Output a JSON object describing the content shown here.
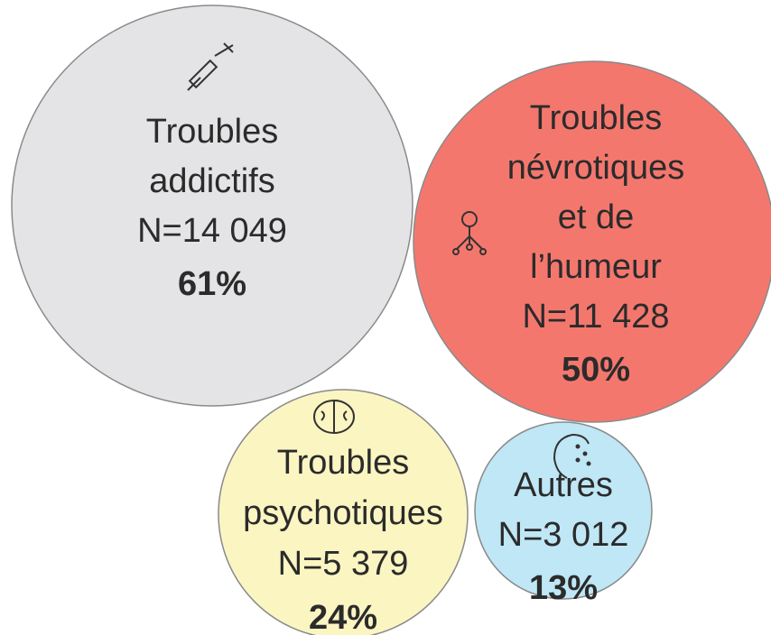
{
  "nodes": [
    {
      "label_lines": [
        "Troubles",
        "addictifs"
      ],
      "count": "N=14 049",
      "share": "61%"
    },
    {
      "label_lines": [
        "Troubles",
        "névrotiques",
        "et de",
        "l’humeur"
      ],
      "count": "N=11 428",
      "share": "50%"
    },
    {
      "label_lines": [
        "Troubles",
        "psychotiques"
      ],
      "count": "N=5 379",
      "share": "24%"
    },
    {
      "label_lines": [
        "Autres"
      ],
      "count": "N=3 012",
      "share": "13%"
    }
  ]
}
